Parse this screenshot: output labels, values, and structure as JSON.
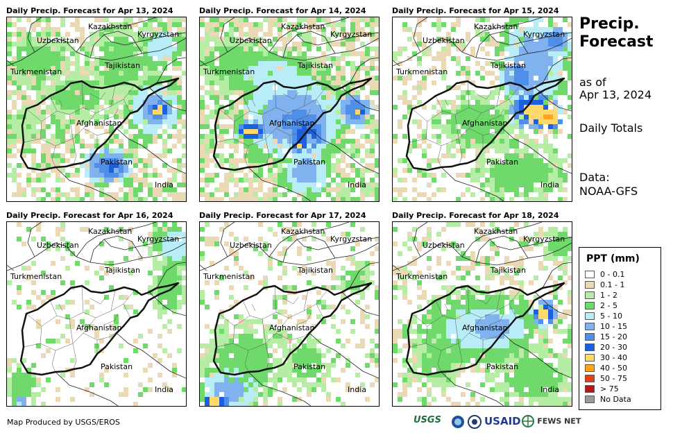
{
  "panels": [
    {
      "title": "Daily Precip. Forecast for Apr 13, 2024"
    },
    {
      "title": "Daily Precip. Forecast for Apr 14, 2024"
    },
    {
      "title": "Daily Precip. Forecast for Apr 15, 2024"
    },
    {
      "title": "Daily Precip. Forecast for Apr 16, 2024"
    },
    {
      "title": "Daily Precip. Forecast for Apr 17, 2024"
    },
    {
      "title": "Daily Precip. Forecast for Apr 18, 2024"
    }
  ],
  "countries": {
    "kazakhstan": "Kazakhstan",
    "kyrgyzstan": "Kyrgyzstan",
    "uzbekistan": "Uzbekistan",
    "tajikistan": "Tajikistan",
    "turkmenistan": "Turkmenistan",
    "afghanistan": "Afghanistan",
    "pakistan": "Pakistan",
    "india": "India"
  },
  "sidebar": {
    "title_line1": "Precip.",
    "title_line2": "Forecast",
    "as_of_label": "as of",
    "as_of_date": "Apr 13, 2024",
    "period": "Daily Totals",
    "data_label": "Data:",
    "data_source": "NOAA-GFS"
  },
  "legend": {
    "title": "PPT (mm)",
    "items": [
      {
        "label": "0 - 0.1",
        "color": "#ffffff"
      },
      {
        "label": "0.1 - 1",
        "color": "#ead9b5"
      },
      {
        "label": "1 - 2",
        "color": "#b5eda5"
      },
      {
        "label": "2 - 5",
        "color": "#6fd96b"
      },
      {
        "label": "5 - 10",
        "color": "#b8ecf6"
      },
      {
        "label": "10 - 15",
        "color": "#7fb2ee"
      },
      {
        "label": "15 - 20",
        "color": "#4f8fe8"
      },
      {
        "label": "20 - 30",
        "color": "#1c5fe0"
      },
      {
        "label": "30 - 40",
        "color": "#ffd86a"
      },
      {
        "label": "40 - 50",
        "color": "#ffa41b"
      },
      {
        "label": "50 - 75",
        "color": "#f03b10"
      },
      {
        "label": "> 75",
        "color": "#b01a1a"
      },
      {
        "label": "No Data",
        "color": "#9a9a9a"
      }
    ]
  },
  "footer": {
    "credit": "Map Produced by USGS/EROS",
    "logo_usgs": "USGS",
    "logo_usaid": "USAID",
    "logo_fewsnet": "FEWS NET"
  }
}
